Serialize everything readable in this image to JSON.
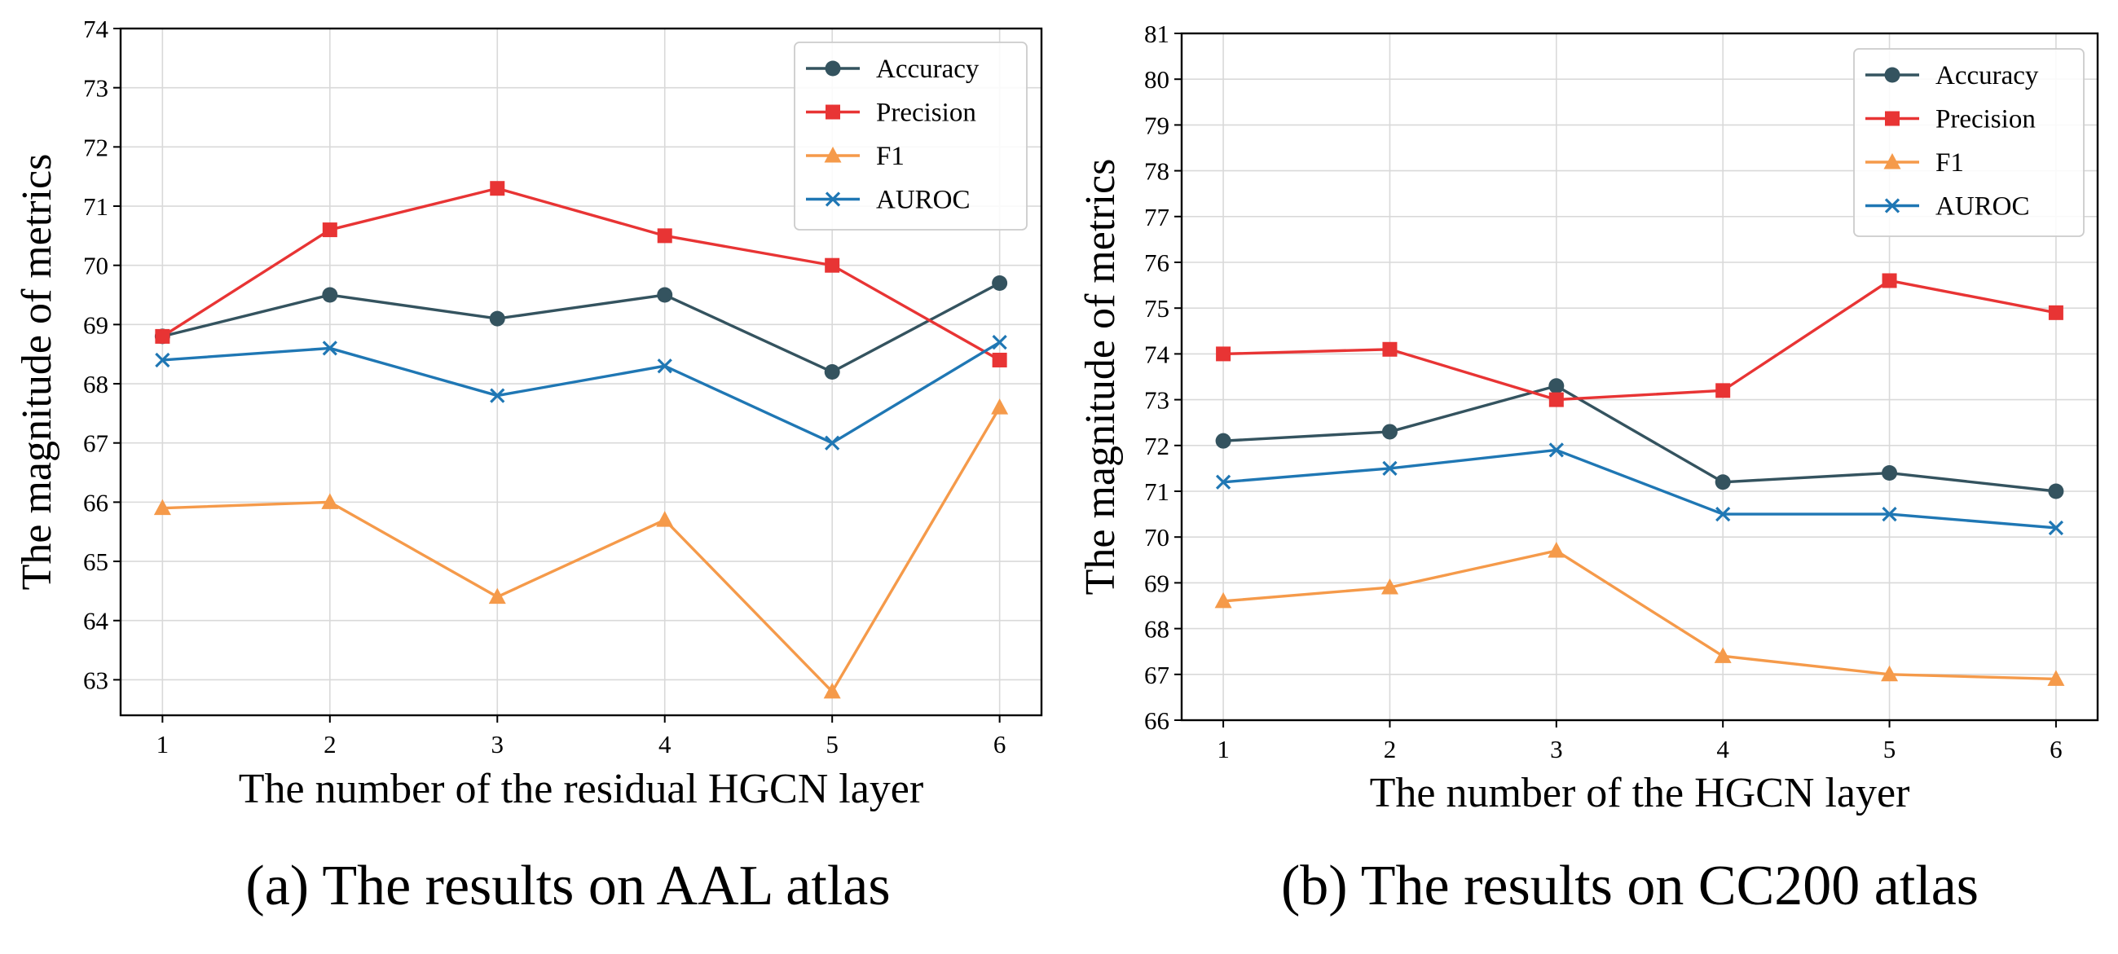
{
  "chart_data": [
    {
      "type": "line",
      "title": "",
      "caption": "(a) The results on AAL atlas",
      "xlabel": "The number of the residual HGCN layer",
      "ylabel": "The magnitude of metrics",
      "x": [
        1,
        2,
        3,
        4,
        5,
        6
      ],
      "xticks": [
        "1",
        "2",
        "3",
        "4",
        "5",
        "6"
      ],
      "xlim": [
        0.75,
        6.25
      ],
      "ylim": [
        62.4,
        74
      ],
      "yticks": [
        "63",
        "64",
        "65",
        "66",
        "67",
        "68",
        "69",
        "70",
        "71",
        "72",
        "73",
        "74"
      ],
      "grid": true,
      "legend_position": "top-right",
      "series": [
        {
          "name": "Accuracy",
          "color": "#34535f",
          "marker": "circle",
          "values": [
            68.8,
            69.5,
            69.1,
            69.5,
            68.2,
            69.7
          ]
        },
        {
          "name": "Precision",
          "color": "#e83434",
          "marker": "square",
          "values": [
            68.8,
            70.6,
            71.3,
            70.5,
            70.0,
            68.4
          ]
        },
        {
          "name": "F1",
          "color": "#f59a4a",
          "marker": "triangle",
          "values": [
            65.9,
            66.0,
            64.4,
            65.7,
            62.8,
            67.6
          ]
        },
        {
          "name": "AUROC",
          "color": "#1f77b4",
          "marker": "x",
          "values": [
            68.4,
            68.6,
            67.8,
            68.3,
            67.0,
            68.7
          ]
        }
      ]
    },
    {
      "type": "line",
      "title": "",
      "caption": "(b) The results on CC200 atlas",
      "xlabel": "The number of the HGCN layer",
      "ylabel": "The magnitude of metrics",
      "x": [
        1,
        2,
        3,
        4,
        5,
        6
      ],
      "xticks": [
        "1",
        "2",
        "3",
        "4",
        "5",
        "6"
      ],
      "xlim": [
        0.75,
        6.25
      ],
      "ylim": [
        66,
        81
      ],
      "yticks": [
        "66",
        "67",
        "68",
        "69",
        "70",
        "71",
        "72",
        "73",
        "74",
        "75",
        "76",
        "77",
        "78",
        "79",
        "80",
        "81"
      ],
      "grid": true,
      "legend_position": "top-right",
      "series": [
        {
          "name": "Accuracy",
          "color": "#34535f",
          "marker": "circle",
          "values": [
            72.1,
            72.3,
            73.3,
            71.2,
            71.4,
            71.0
          ]
        },
        {
          "name": "Precision",
          "color": "#e83434",
          "marker": "square",
          "values": [
            74.0,
            74.1,
            73.0,
            73.2,
            75.6,
            74.9
          ]
        },
        {
          "name": "F1",
          "color": "#f59a4a",
          "marker": "triangle",
          "values": [
            68.6,
            68.9,
            69.7,
            67.4,
            67.0,
            66.9
          ]
        },
        {
          "name": "AUROC",
          "color": "#1f77b4",
          "marker": "x",
          "values": [
            71.2,
            71.5,
            71.9,
            70.5,
            70.5,
            70.2
          ]
        }
      ]
    }
  ]
}
